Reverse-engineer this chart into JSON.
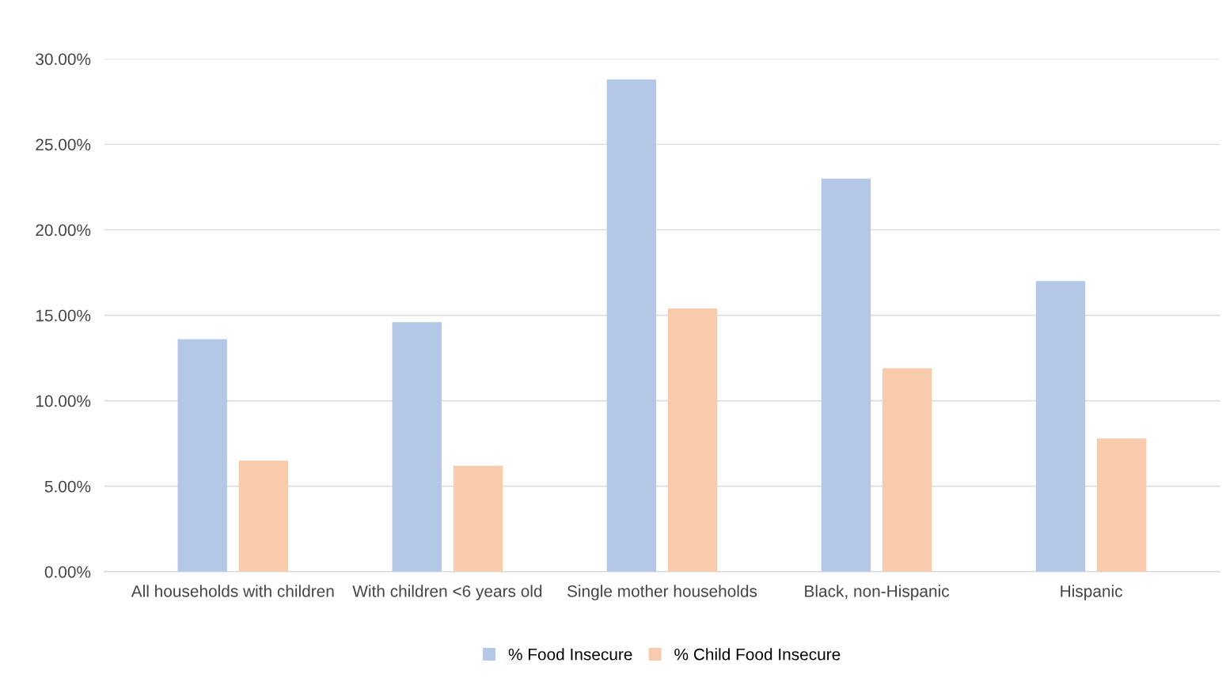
{
  "chart_data": {
    "type": "bar",
    "categories": [
      "All households with children",
      "With children <6 years old",
      "Single mother households",
      "Black, non-Hispanic",
      "Hispanic"
    ],
    "series": [
      {
        "name": "% Food Insecure",
        "color": "#b4c7e7",
        "values": [
          13.6,
          14.6,
          28.8,
          23.0,
          17.0
        ]
      },
      {
        "name": "% Child Food Insecure",
        "color": "#f8cbad",
        "values": [
          6.5,
          6.2,
          15.4,
          11.9,
          7.8
        ]
      }
    ],
    "ylim": [
      0,
      30
    ],
    "yticks": [
      {
        "value": 0,
        "label": "0.00%"
      },
      {
        "value": 5,
        "label": "5.00%"
      },
      {
        "value": 10,
        "label": "10.00%"
      },
      {
        "value": 15,
        "label": "15.00%"
      },
      {
        "value": 20,
        "label": "20.00%"
      },
      {
        "value": 25,
        "label": "25.00%"
      },
      {
        "value": 30,
        "label": "30.00%"
      }
    ],
    "grid": "y",
    "legend": "bottom"
  }
}
